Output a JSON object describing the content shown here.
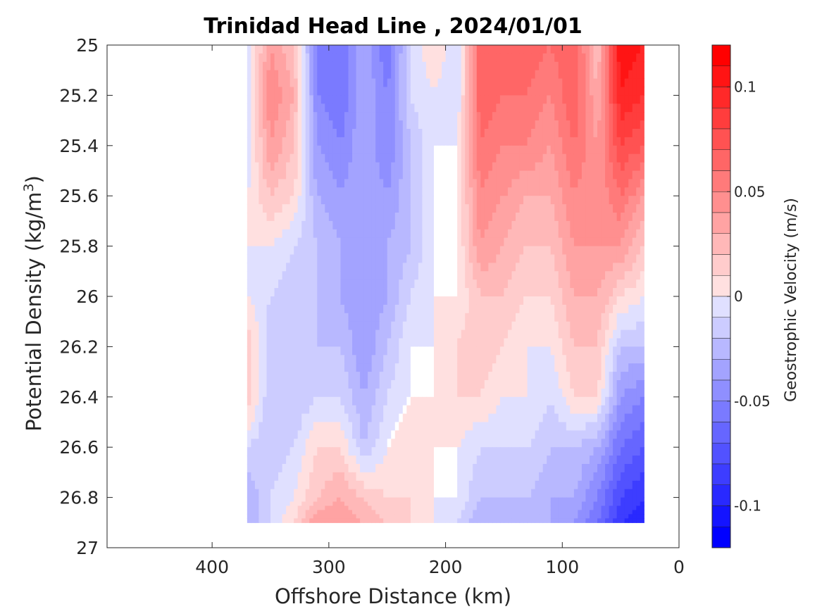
{
  "chart_data": {
    "type": "heatmap",
    "title": "Trinidad Head Line , 2024/01/01",
    "xlabel": "Offshore Distance (km)",
    "ylabel_main": "Potential Density (kg/m",
    "ylabel_sup": "3",
    "ylabel_end": ")",
    "colorbar_label": "Geostrophic Velocity (m/s)",
    "xlim": [
      490,
      0
    ],
    "x_reversed": true,
    "ylim": [
      25,
      27
    ],
    "y_reversed": true,
    "x_ticks": [
      400,
      300,
      200,
      100,
      0
    ],
    "x_tick_labels": [
      "400",
      "300",
      "200",
      "100",
      "0"
    ],
    "y_ticks": [
      25,
      25.2,
      25.4,
      25.6,
      25.8,
      26,
      26.2,
      26.4,
      26.6,
      26.8,
      27
    ],
    "y_tick_labels": [
      "25",
      "25.2",
      "25.4",
      "25.6",
      "25.8",
      "26",
      "26.2",
      "26.4",
      "26.6",
      "26.8",
      "27"
    ],
    "clim": [
      -0.12,
      0.12
    ],
    "contour_step": 0.01,
    "colorbar_ticks": [
      0.1,
      0.05,
      0,
      -0.05,
      -0.1
    ],
    "colorbar_tick_labels": [
      "0.1",
      "0.05",
      "0",
      "-0.05",
      "-0.1"
    ],
    "colormap": "blue-white-red",
    "colors": {
      "negative": "#0000ff",
      "zero": "#ffffff",
      "positive": "#ff0000"
    },
    "grid": false,
    "x": [
      370,
      350,
      330,
      310,
      290,
      270,
      250,
      230,
      210,
      190,
      170,
      150,
      130,
      110,
      90,
      70,
      50,
      30
    ],
    "y": [
      25,
      25.2,
      25.4,
      25.6,
      25.8,
      26,
      26.2,
      26.4,
      26.6,
      26.8,
      26.9
    ],
    "velocity": [
      [
        -0.01,
        0.04,
        0.02,
        -0.05,
        -0.06,
        -0.03,
        -0.06,
        -0.01,
        0.01,
        -0.01,
        0.07,
        0.06,
        0.07,
        0.06,
        0.07,
        0.02,
        0.11,
        0.1
      ],
      [
        -0.01,
        0.05,
        0.03,
        -0.05,
        -0.06,
        -0.03,
        -0.05,
        -0.01,
        0.0,
        -0.01,
        0.07,
        0.06,
        0.06,
        0.05,
        0.07,
        0.03,
        0.1,
        0.09
      ],
      [
        -0.01,
        0.04,
        0.02,
        -0.04,
        -0.05,
        -0.03,
        -0.05,
        -0.02,
        0.0,
        0.0,
        0.06,
        0.05,
        0.05,
        0.04,
        0.06,
        0.04,
        0.08,
        0.07
      ],
      [
        0.0,
        0.02,
        0.01,
        -0.03,
        -0.04,
        -0.03,
        -0.04,
        -0.02,
        0.0,
        0.0,
        0.05,
        0.04,
        0.03,
        0.03,
        0.05,
        0.04,
        0.06,
        0.04
      ],
      [
        0.0,
        0.0,
        -0.01,
        -0.02,
        -0.03,
        -0.04,
        -0.03,
        -0.02,
        0.0,
        0.0,
        0.04,
        0.03,
        0.02,
        0.02,
        0.04,
        0.04,
        0.04,
        0.02
      ],
      [
        0.0,
        -0.01,
        -0.02,
        -0.02,
        -0.03,
        -0.04,
        -0.03,
        -0.01,
        0.0,
        0.0,
        0.02,
        0.02,
        0.01,
        0.01,
        0.03,
        0.03,
        0.01,
        0.0
      ],
      [
        0.02,
        -0.02,
        -0.02,
        -0.02,
        -0.02,
        -0.04,
        -0.02,
        0.0,
        0.0,
        0.01,
        0.02,
        0.01,
        0.0,
        0.0,
        0.02,
        0.02,
        -0.02,
        -0.02
      ],
      [
        0.02,
        -0.02,
        -0.02,
        -0.01,
        -0.01,
        -0.03,
        -0.01,
        0.0,
        0.0,
        0.01,
        0.01,
        0.0,
        0.0,
        -0.01,
        0.01,
        0.01,
        -0.04,
        -0.05
      ],
      [
        -0.01,
        -0.02,
        -0.01,
        0.01,
        0.01,
        -0.02,
        0.0,
        0.01,
        0.0,
        0.0,
        -0.01,
        -0.01,
        -0.01,
        -0.02,
        -0.02,
        -0.03,
        -0.06,
        -0.07
      ],
      [
        -0.03,
        -0.01,
        0.0,
        0.02,
        0.03,
        0.02,
        0.01,
        0.01,
        0.0,
        0.0,
        -0.02,
        -0.02,
        -0.02,
        -0.03,
        -0.03,
        -0.05,
        -0.08,
        -0.09
      ],
      [
        -0.03,
        -0.01,
        0.01,
        0.04,
        0.04,
        0.03,
        0.02,
        0.01,
        0.0,
        -0.01,
        -0.03,
        -0.03,
        -0.02,
        -0.03,
        -0.04,
        -0.06,
        -0.09,
        -0.1
      ]
    ]
  }
}
